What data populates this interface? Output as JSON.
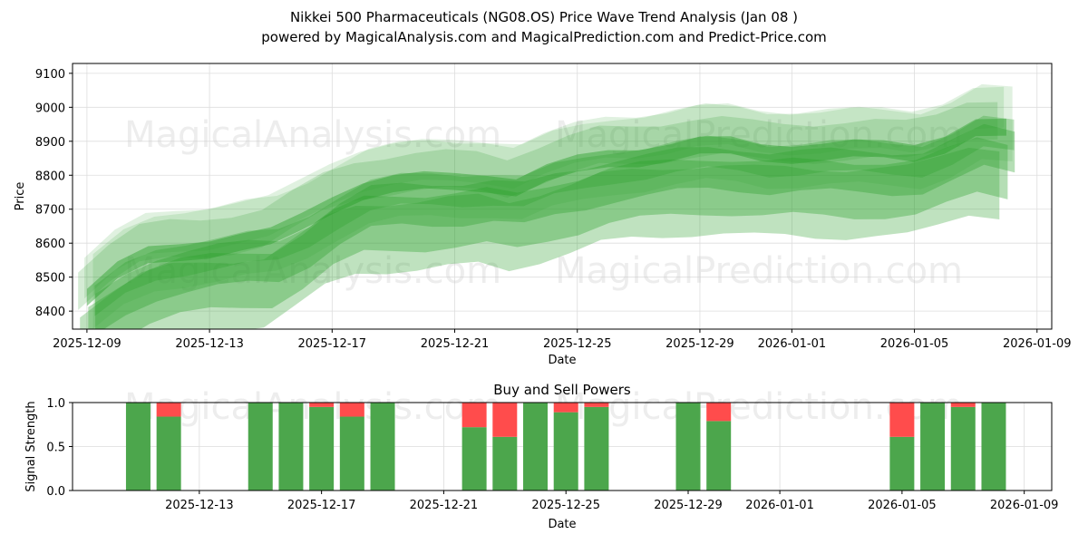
{
  "chart_data": [
    {
      "type": "area",
      "title": "Nikkei 500 Pharmaceuticals (NG08.OS) Price Wave Trend Analysis (Jan 08 )",
      "subtitle": "powered by MagicalAnalysis.com and MagicalPrediction.com and Predict-Price.com",
      "xlabel": "Date",
      "ylabel": "Price",
      "x_start": "2025-12-09",
      "xlim_days": [
        -0.47,
        31.48
      ],
      "ylim": [
        8347,
        9129
      ],
      "yticks": [
        8400,
        8500,
        8600,
        8700,
        8800,
        8900,
        9000,
        9100
      ],
      "xticks": [
        {
          "d": 0,
          "label": "2025-12-09"
        },
        {
          "d": 4,
          "label": "2025-12-13"
        },
        {
          "d": 8,
          "label": "2025-12-17"
        },
        {
          "d": 12,
          "label": "2025-12-21"
        },
        {
          "d": 16,
          "label": "2025-12-25"
        },
        {
          "d": 20,
          "label": "2025-12-29"
        },
        {
          "d": 23,
          "label": "2026-01-01"
        },
        {
          "d": 27,
          "label": "2026-01-05"
        },
        {
          "d": 31,
          "label": "2026-01-09"
        }
      ],
      "grid": true,
      "wave_center": {
        "days": [
          0,
          1,
          2,
          3,
          4,
          5,
          6,
          7,
          8,
          9,
          10,
          11,
          12,
          13,
          14,
          15,
          16,
          17,
          18,
          19,
          20,
          21,
          22,
          23,
          24,
          25,
          26,
          27,
          28,
          29,
          30
        ],
        "values": [
          8440,
          8510,
          8560,
          8580,
          8590,
          8600,
          8610,
          8660,
          8720,
          8760,
          8770,
          8775,
          8780,
          8785,
          8770,
          8800,
          8825,
          8850,
          8860,
          8870,
          8880,
          8880,
          8870,
          8870,
          8870,
          8870,
          8870,
          8870,
          8900,
          8940,
          8930
        ]
      },
      "bands": [
        {
          "offset": 0,
          "half_width": 25,
          "opacity": 0.45
        },
        {
          "offset": -20,
          "half_width": 45,
          "opacity": 0.3
        },
        {
          "offset": -60,
          "half_width": 60,
          "opacity": 0.35
        },
        {
          "offset": -110,
          "half_width": 80,
          "opacity": 0.35
        },
        {
          "offset": -150,
          "half_width": 100,
          "opacity": 0.3
        },
        {
          "offset": 30,
          "half_width": 55,
          "opacity": 0.2
        },
        {
          "offset": 60,
          "half_width": 60,
          "opacity": 0.15
        },
        {
          "offset": 10,
          "half_width": 110,
          "opacity": 0.15
        }
      ],
      "watermarks": [
        "MagicalAnalysis.com",
        "MagicalPrediction.com",
        "MagicalAnalysis.com",
        "MagicalPrediction.com"
      ]
    },
    {
      "type": "bar",
      "title": "Buy and Sell Powers",
      "xlabel": "Date",
      "ylabel": "Signal Strength",
      "ylim": [
        0,
        1
      ],
      "yticks": [
        {
          "v": 0,
          "label": "0.0"
        },
        {
          "v": 0.5,
          "label": "0.5"
        },
        {
          "v": 1,
          "label": "1.0"
        }
      ],
      "xlim_days": [
        -0.15,
        31.9
      ],
      "xticks": [
        {
          "d": 4,
          "label": "2025-12-13"
        },
        {
          "d": 8,
          "label": "2025-12-17"
        },
        {
          "d": 12,
          "label": "2025-12-21"
        },
        {
          "d": 16,
          "label": "2025-12-25"
        },
        {
          "d": 20,
          "label": "2025-12-29"
        },
        {
          "d": 23,
          "label": "2026-01-01"
        },
        {
          "d": 27,
          "label": "2026-01-05"
        },
        {
          "d": 31,
          "label": "2026-01-09"
        }
      ],
      "days": [
        2,
        3,
        6,
        7,
        8,
        9,
        10,
        13,
        14,
        15,
        16,
        17,
        20,
        21,
        27,
        28,
        29,
        30
      ],
      "categories": [
        "2025-12-11",
        "2025-12-12",
        "2025-12-15",
        "2025-12-16",
        "2025-12-17",
        "2025-12-18",
        "2025-12-19",
        "2025-12-22",
        "2025-12-23",
        "2025-12-24",
        "2025-12-25",
        "2025-12-26",
        "2025-12-29",
        "2025-12-30",
        "2026-01-05",
        "2026-01-06",
        "2026-01-07",
        "2026-01-08"
      ],
      "series": [
        {
          "name": "Buy",
          "color": "#4ca64c",
          "values": [
            1,
            0.84,
            1,
            1,
            0.95,
            0.84,
            1,
            0.72,
            0.61,
            1,
            0.89,
            0.95,
            1,
            0.79,
            0.61,
            1,
            0.95,
            1
          ]
        },
        {
          "name": "Sell",
          "color": "#ff4c4c",
          "values": [
            0,
            0.16,
            0,
            0,
            0.05,
            0.16,
            0,
            0.28,
            0.39,
            0,
            0.11,
            0.05,
            0,
            0.21,
            0.39,
            0,
            0.05,
            0
          ]
        }
      ]
    }
  ]
}
